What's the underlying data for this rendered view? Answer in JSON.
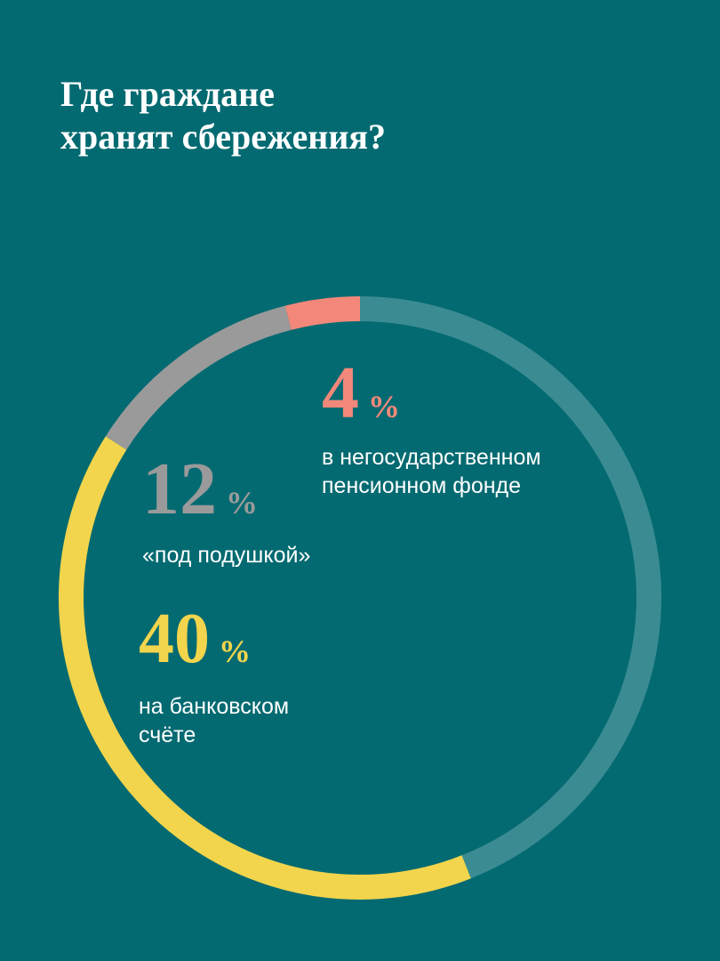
{
  "title": {
    "line1": "Где граждане",
    "line2": "хранят сбережения?"
  },
  "colors": {
    "background": "#046a71",
    "npf": "#f3887a",
    "pillow": "#9a9a9a",
    "bank": "#f2d54c",
    "rest": "#3a8c92"
  },
  "chart_data": {
    "type": "pie",
    "style": "donut",
    "start": "top, clockwise from the teal segment",
    "values": [
      44,
      40,
      12,
      4
    ],
    "labels": [
      "",
      "на банковском счёте",
      "«под подушкой»",
      "в негосударственном пенсионном фонде"
    ],
    "display": [
      {
        "value": "4",
        "unit": "%",
        "desc1": "в негосударственном",
        "desc2": "пенсионном фонде"
      },
      {
        "value": "12",
        "unit": "%",
        "desc1": "«под подушкой»"
      },
      {
        "value": "40",
        "unit": "%",
        "desc1": "на банковском",
        "desc2": "счёте"
      }
    ]
  }
}
